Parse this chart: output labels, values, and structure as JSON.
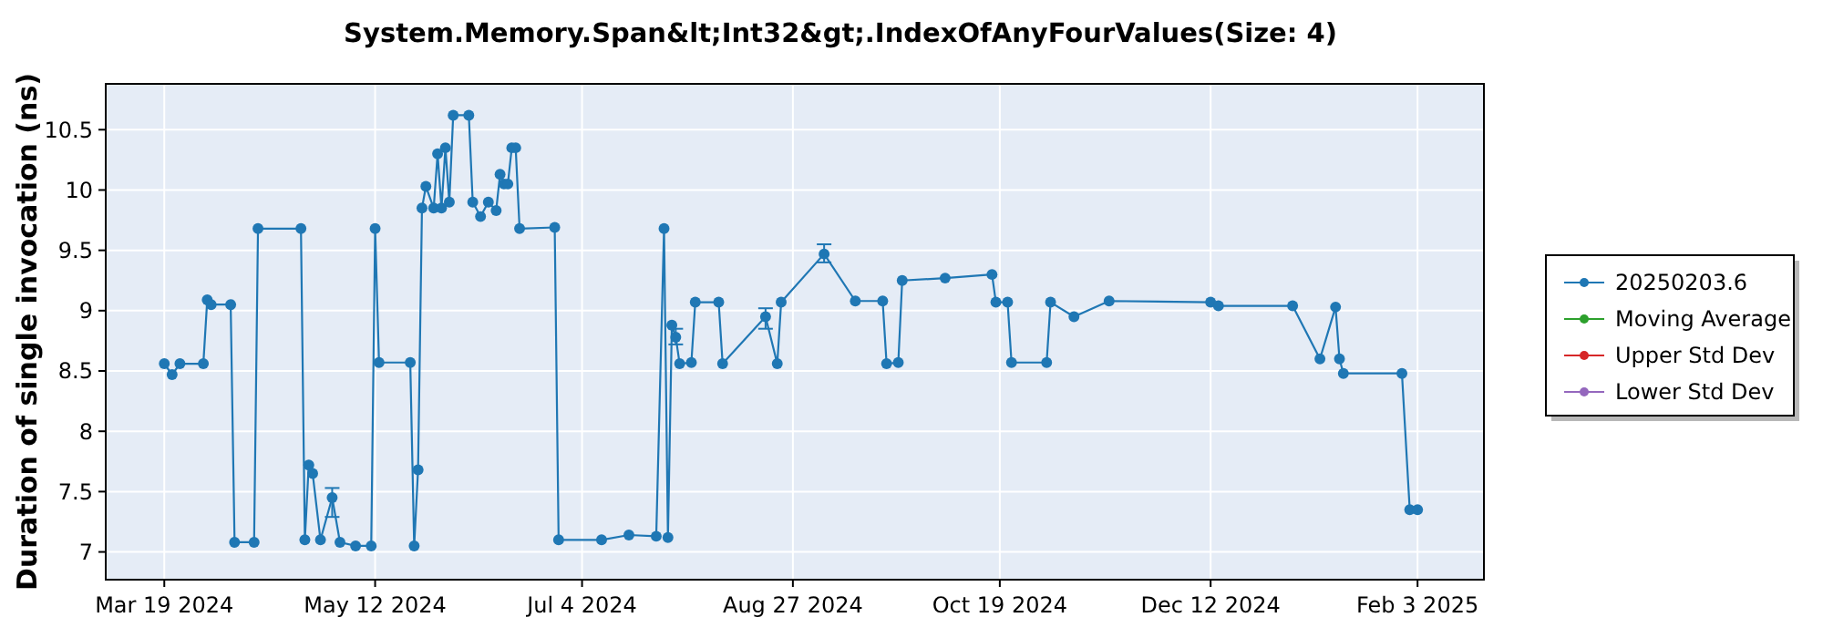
{
  "chart_data": {
    "type": "line",
    "title": "System.Memory.Span&lt;Int32&gt;.IndexOfAnyFourValues(Size: 4)",
    "ylabel": "Duration of single invocation (ns)",
    "xlim": [
      "2024-03-04",
      "2025-02-20"
    ],
    "ylim": [
      6.77,
      10.88
    ],
    "xticks": [
      {
        "value": "2024-03-19",
        "label": "Mar 19 2024"
      },
      {
        "value": "2024-05-12",
        "label": "May 12 2024"
      },
      {
        "value": "2024-07-04",
        "label": "Jul 4 2024"
      },
      {
        "value": "2024-08-27",
        "label": "Aug 27 2024"
      },
      {
        "value": "2024-10-19",
        "label": "Oct 19 2024"
      },
      {
        "value": "2024-12-12",
        "label": "Dec 12 2024"
      },
      {
        "value": "2025-02-03",
        "label": "Feb 3 2025"
      }
    ],
    "yticks": [
      7,
      7.5,
      8,
      8.5,
      9,
      9.5,
      10,
      10.5
    ],
    "grid": true,
    "legend": "right",
    "marker": "circle",
    "line_style": "solid",
    "series": [
      {
        "name": "20250203.6",
        "color": "#1f77b4",
        "x": [
          "2024-03-19",
          "2024-03-21",
          "2024-03-23",
          "2024-03-29",
          "2024-03-30",
          "2024-03-31",
          "2024-04-05",
          "2024-04-06",
          "2024-04-11",
          "2024-04-12",
          "2024-04-23",
          "2024-04-24",
          "2024-04-25",
          "2024-04-26",
          "2024-04-28",
          "2024-05-01",
          "2024-05-03",
          "2024-05-07",
          "2024-05-11",
          "2024-05-12",
          "2024-05-13",
          "2024-05-21",
          "2024-05-22",
          "2024-05-23",
          "2024-05-24",
          "2024-05-25",
          "2024-05-27",
          "2024-05-28",
          "2024-05-29",
          "2024-05-30",
          "2024-05-31",
          "2024-06-01",
          "2024-06-05",
          "2024-06-06",
          "2024-06-08",
          "2024-06-10",
          "2024-06-12",
          "2024-06-13",
          "2024-06-14",
          "2024-06-15",
          "2024-06-16",
          "2024-06-17",
          "2024-06-18",
          "2024-06-27",
          "2024-06-28",
          "2024-07-09",
          "2024-07-16",
          "2024-07-23",
          "2024-07-25",
          "2024-07-26",
          "2024-07-27",
          "2024-07-28",
          "2024-07-29",
          "2024-08-01",
          "2024-08-02",
          "2024-08-08",
          "2024-08-09",
          "2024-08-20",
          "2024-08-23",
          "2024-08-24",
          "2024-09-04",
          "2024-09-12",
          "2024-09-19",
          "2024-09-20",
          "2024-09-23",
          "2024-09-24",
          "2024-10-05",
          "2024-10-17",
          "2024-10-18",
          "2024-10-21",
          "2024-10-22",
          "2024-10-31",
          "2024-11-01",
          "2024-11-07",
          "2024-11-16",
          "2024-12-12",
          "2024-12-14",
          "2025-01-02",
          "2025-01-09",
          "2025-01-13",
          "2025-01-14",
          "2025-01-15",
          "2025-01-30",
          "2025-02-01",
          "2025-02-03"
        ],
        "values": [
          8.56,
          8.47,
          8.56,
          8.56,
          9.09,
          9.05,
          9.05,
          7.08,
          7.08,
          9.68,
          9.68,
          7.1,
          7.72,
          7.65,
          7.1,
          7.45,
          7.08,
          7.05,
          7.05,
          9.68,
          8.57,
          8.57,
          7.05,
          7.68,
          9.85,
          10.03,
          9.85,
          10.3,
          9.85,
          10.35,
          9.9,
          10.62,
          10.62,
          9.9,
          9.78,
          9.9,
          9.83,
          10.13,
          10.05,
          10.05,
          10.35,
          10.35,
          9.68,
          9.69,
          7.1,
          7.1,
          7.14,
          7.13,
          9.68,
          7.12,
          8.88,
          8.78,
          8.56,
          8.57,
          9.07,
          9.07,
          8.56,
          8.95,
          8.56,
          9.07,
          9.47,
          9.08,
          9.08,
          8.56,
          8.57,
          9.25,
          9.27,
          9.3,
          9.07,
          9.07,
          8.57,
          8.57,
          9.07,
          8.95,
          9.08,
          9.07,
          9.04,
          9.04,
          8.6,
          9.03,
          8.6,
          8.48,
          8.48,
          7.35,
          7.35
        ],
        "errors": [
          null,
          null,
          null,
          null,
          null,
          null,
          null,
          null,
          null,
          null,
          null,
          null,
          null,
          null,
          null,
          [
            7.29,
            7.53
          ],
          null,
          null,
          null,
          null,
          null,
          null,
          null,
          null,
          null,
          null,
          null,
          null,
          null,
          null,
          null,
          null,
          null,
          null,
          null,
          null,
          null,
          null,
          null,
          null,
          null,
          null,
          null,
          null,
          null,
          null,
          null,
          null,
          null,
          null,
          null,
          [
            8.72,
            8.85
          ],
          null,
          null,
          null,
          null,
          null,
          [
            8.85,
            9.02
          ],
          null,
          null,
          [
            9.4,
            9.55
          ],
          null,
          null,
          null,
          null,
          null,
          null,
          null,
          null,
          null,
          null,
          null,
          null,
          null,
          null,
          null,
          null,
          null,
          null,
          null,
          null,
          null,
          null,
          null,
          null
        ]
      },
      {
        "name": "Moving Average",
        "color": "#2ca02c"
      },
      {
        "name": "Upper Std Dev",
        "color": "#d62728"
      },
      {
        "name": "Lower Std Dev",
        "color": "#9467bd"
      }
    ]
  }
}
